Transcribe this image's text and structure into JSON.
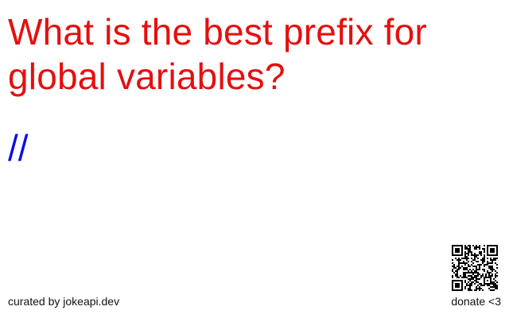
{
  "joke": {
    "question": "What is the best prefix for global variables?",
    "answer": "//"
  },
  "footer": {
    "credit": "curated by jokeapi.dev",
    "donate": "donate <3"
  },
  "colors": {
    "question": "#e60f0f",
    "answer": "#1010dd",
    "footer_text": "#111111"
  },
  "icons": {
    "qr": "qr-code-icon"
  }
}
